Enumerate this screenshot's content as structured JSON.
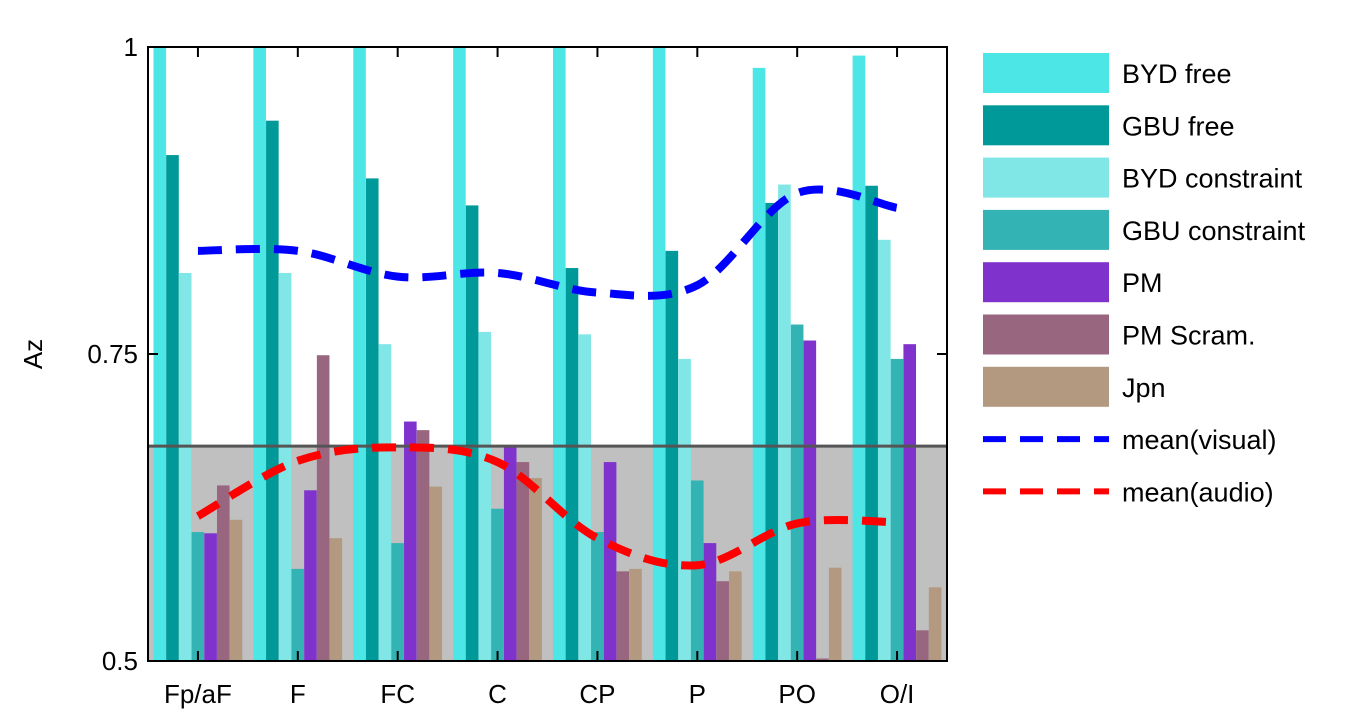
{
  "chart_data": {
    "type": "bar",
    "title": "",
    "xlabel": "",
    "ylabel": "Az",
    "ylim": [
      0.5,
      1
    ],
    "yticks": [
      0.5,
      0.75,
      1
    ],
    "ytick_labels": [
      "0.5",
      "0.75",
      "1"
    ],
    "categories": [
      "Fp/aF",
      "F",
      "FC",
      "C",
      "CP",
      "P",
      "PO",
      "O/I"
    ],
    "grid": false,
    "legend_position": "right",
    "chance_level": 0.675,
    "chance_region_color": "#c0c0c0",
    "series": [
      {
        "name": "BYD free",
        "color": "#4de6e6",
        "values": [
          1.0,
          1.0,
          1.0,
          1.0,
          1.0,
          1.0,
          0.983,
          0.993
        ]
      },
      {
        "name": "GBU free",
        "color": "#009999",
        "values": [
          0.912,
          0.94,
          0.893,
          0.871,
          0.82,
          0.834,
          0.873,
          0.887
        ]
      },
      {
        "name": "BYD constraint",
        "color": "#80e6e6",
        "values": [
          0.816,
          0.816,
          0.758,
          0.768,
          0.766,
          0.746,
          0.888,
          0.843
        ]
      },
      {
        "name": "GBU constraint",
        "color": "#33b3b3",
        "values": [
          0.605,
          0.575,
          0.596,
          0.624,
          0.605,
          0.647,
          0.774,
          0.746
        ]
      },
      {
        "name": "PM",
        "color": "#8033cc",
        "values": [
          0.604,
          0.639,
          0.695,
          0.674,
          0.662,
          0.596,
          0.761,
          0.758
        ]
      },
      {
        "name": "PM Scram.",
        "color": "#996680",
        "values": [
          0.643,
          0.749,
          0.688,
          0.662,
          0.573,
          0.565,
          0.502,
          0.525
        ]
      },
      {
        "name": "Jpn",
        "color": "#b39980",
        "values": [
          0.615,
          0.6,
          0.642,
          0.649,
          0.575,
          0.573,
          0.576,
          0.56
        ]
      }
    ],
    "lines": [
      {
        "name": "mean(visual)",
        "color": "#0000ff",
        "style": "dashed",
        "values": [
          0.834,
          0.834,
          0.813,
          0.816,
          0.8,
          0.806,
          0.881,
          0.869
        ]
      },
      {
        "name": "mean(audio)",
        "color": "#ff0000",
        "style": "dashed",
        "values": [
          0.618,
          0.663,
          0.674,
          0.662,
          0.6,
          0.578,
          0.612,
          0.613
        ]
      }
    ]
  }
}
